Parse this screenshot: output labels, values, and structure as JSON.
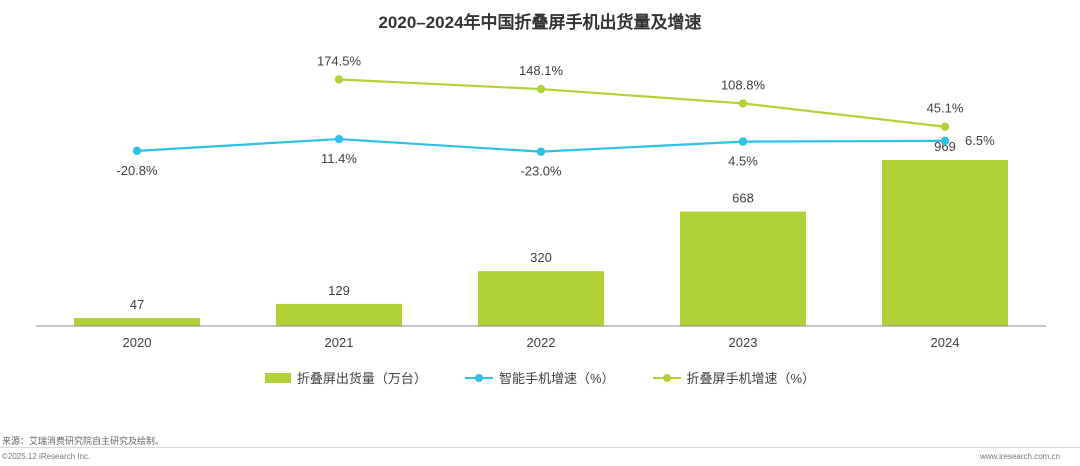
{
  "title": "2020–2024年中国折叠屏手机出货量及增速",
  "chart_data": {
    "type": "bar+line",
    "title": "2020–2024年中国折叠屏手机出货量及增速",
    "categories": [
      "2020",
      "2021",
      "2022",
      "2023",
      "2024"
    ],
    "bars": {
      "name": "折叠屏出货量（万台）",
      "values": [
        47,
        129,
        320,
        668,
        969
      ],
      "labels": [
        "47",
        "129",
        "320",
        "668",
        "969"
      ],
      "color": "#B1D236"
    },
    "lines": [
      {
        "name": "智能手机增速（%）",
        "values": [
          -20.8,
          11.4,
          -23.0,
          4.5,
          6.5
        ],
        "labels": [
          "-20.8%",
          "11.4%",
          "-23.0%",
          "4.5%",
          "6.5%"
        ],
        "color": "#2EC1E6"
      },
      {
        "name": "折叠屏手机增速（%）",
        "values": [
          null,
          174.5,
          148.1,
          108.8,
          45.1
        ],
        "labels": [
          "",
          "174.5%",
          "148.1%",
          "108.8%",
          "45.1%"
        ],
        "color": "#B1D236"
      }
    ],
    "legend": "bottom-center",
    "grid": false
  },
  "source": "来源：艾瑞消费研究院自主研究及绘制。",
  "copyright": "©2025.12 iResearch Inc.",
  "site": "www.iresearch.com.cn"
}
